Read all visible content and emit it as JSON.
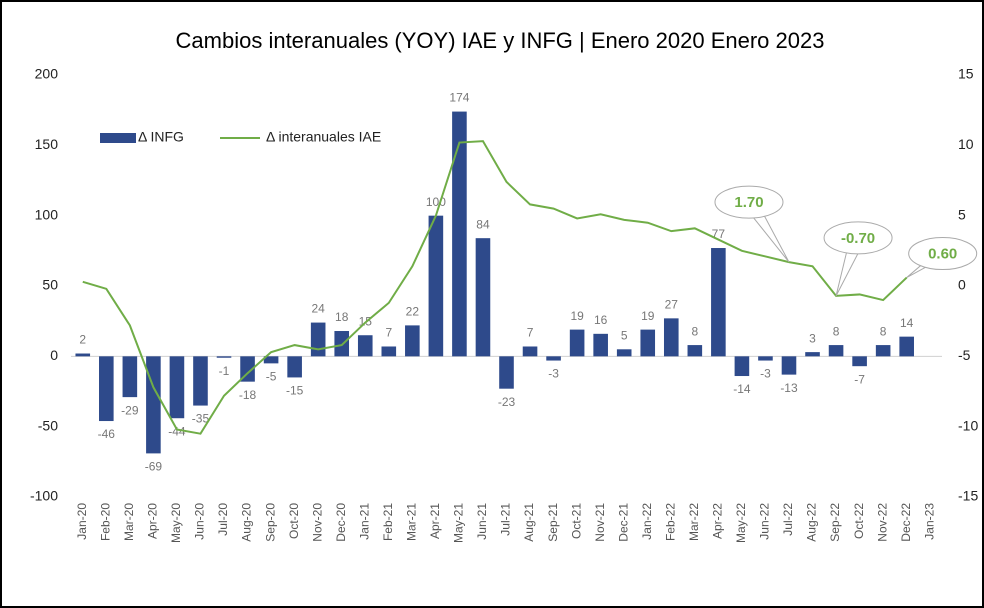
{
  "chart_data": {
    "type": "bar_line",
    "title": "Cambios interanuales (YOY) IAE y INFG | Enero 2020 Enero 2023",
    "categories": [
      "Jan-20",
      "Feb-20",
      "Mar-20",
      "Apr-20",
      "May-20",
      "Jun-20",
      "Jul-20",
      "Aug-20",
      "Sep-20",
      "Oct-20",
      "Nov-20",
      "Dec-20",
      "Jan-21",
      "Feb-21",
      "Mar-21",
      "Apr-21",
      "May-21",
      "Jun-21",
      "Jul-21",
      "Aug-21",
      "Sep-21",
      "Oct-21",
      "Nov-21",
      "Dec-21",
      "Jan-22",
      "Feb-22",
      "Mar-22",
      "Apr-22",
      "May-22",
      "Jun-22",
      "Jul-22",
      "Aug-22",
      "Sep-22",
      "Oct-22",
      "Nov-22",
      "Dec-22",
      "Jan-23"
    ],
    "series": [
      {
        "name": "Δ INFG",
        "type": "bar",
        "color": "#2e4a8b",
        "values": [
          2,
          -46,
          -29,
          -69,
          -44,
          -35,
          -1,
          -18,
          -5,
          -15,
          24,
          18,
          15,
          7,
          22,
          100,
          174,
          84,
          -23,
          7,
          -3,
          19,
          16,
          5,
          19,
          27,
          8,
          77,
          -14,
          -3,
          -13,
          3,
          8,
          -7,
          8,
          14,
          null
        ]
      },
      {
        "name": "Δ interanuales IAE",
        "type": "line",
        "axis": "y2",
        "color": "#70ad47",
        "values": [
          0.3,
          -0.2,
          -2.8,
          -7.2,
          -10.2,
          -10.5,
          -7.8,
          -6.2,
          -4.7,
          -4.2,
          -4.5,
          -4.2,
          -2.6,
          -1.2,
          1.4,
          5.0,
          10.2,
          10.3,
          7.4,
          5.8,
          5.5,
          4.8,
          5.1,
          4.7,
          4.5,
          3.9,
          4.1,
          3.3,
          2.5,
          2.1,
          1.7,
          1.4,
          -0.7,
          -0.6,
          -1.0,
          0.6,
          null
        ],
        "value_labels": [
          null,
          null,
          null,
          null,
          null,
          null,
          null,
          null,
          null,
          null,
          null,
          null,
          null,
          null,
          null,
          null,
          null,
          null,
          null,
          null,
          null,
          null,
          null,
          null,
          null,
          null,
          null,
          null,
          null,
          null,
          "1.70",
          null,
          "-0.70",
          null,
          null,
          "0.60",
          null
        ]
      }
    ],
    "ylim": [
      -100,
      200
    ],
    "yticks": [
      -100,
      -50,
      0,
      50,
      100,
      150,
      200
    ],
    "y2lim": [
      -15,
      15
    ],
    "y2ticks": [
      -15,
      -10,
      -5,
      0,
      5,
      10,
      15
    ],
    "legend": "top-left"
  }
}
